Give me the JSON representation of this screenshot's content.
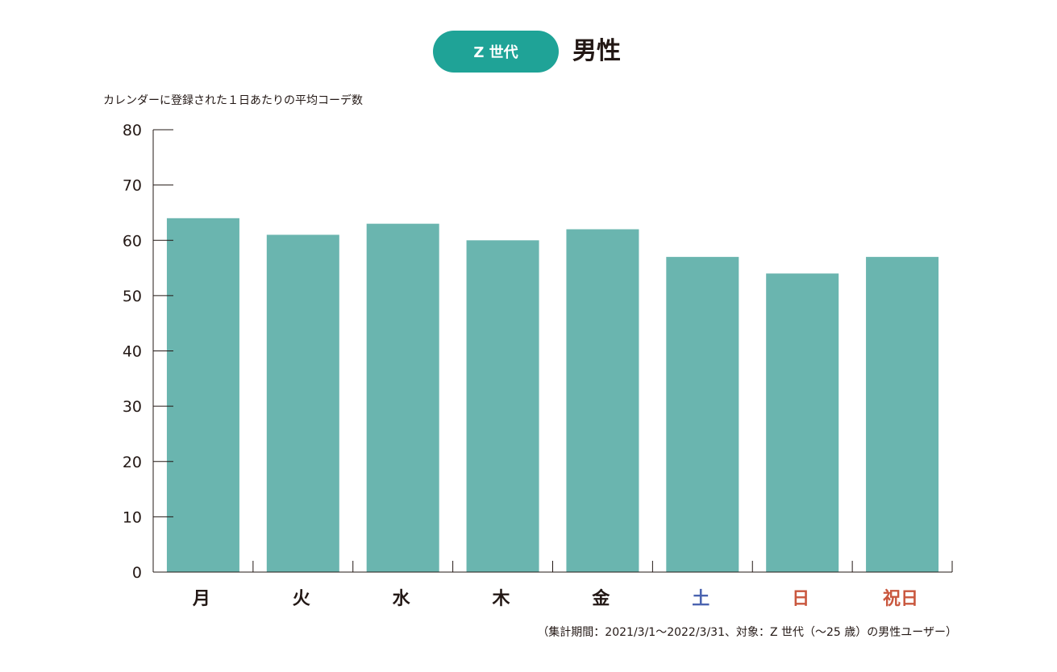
{
  "header": {
    "badge_label": "Z 世代",
    "title": "男性"
  },
  "caption": "カレンダーに登録された１日あたりの平均コーデ数",
  "footnote": "（集計期間：2021/3/1〜2022/3/31、対象：Z 世代（〜25 歳）の男性ユーザー）",
  "chart_data": {
    "type": "bar",
    "categories": [
      "月",
      "火",
      "水",
      "木",
      "金",
      "土",
      "日",
      "祝日"
    ],
    "category_colors": [
      "#231815",
      "#231815",
      "#231815",
      "#231815",
      "#231815",
      "#4a63b0",
      "#c9573e",
      "#c9573e"
    ],
    "values": [
      64,
      61,
      63,
      60,
      62,
      57,
      54,
      57
    ],
    "ylabel": "カレンダーに登録された１日あたりの平均コーデ数",
    "ylim": [
      0,
      80
    ],
    "yticks": [
      0,
      10,
      20,
      30,
      40,
      50,
      60,
      70,
      80
    ],
    "bar_color": "#6ab5af",
    "grid": false,
    "legend": "none"
  }
}
